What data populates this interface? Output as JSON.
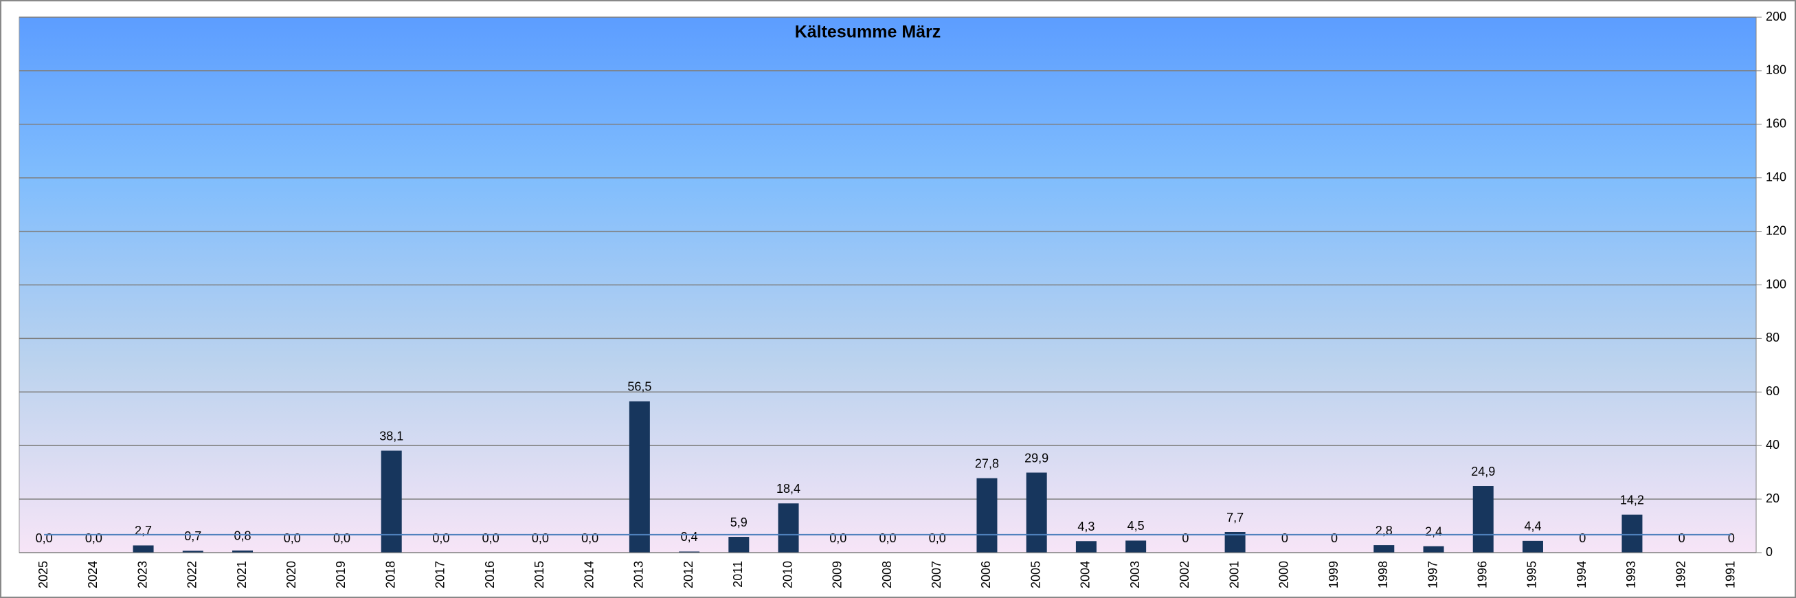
{
  "chart_data": {
    "type": "bar",
    "title": "Kältesumme März",
    "categories": [
      "2025",
      "2024",
      "2023",
      "2022",
      "2021",
      "2020",
      "2019",
      "2018",
      "2017",
      "2016",
      "2015",
      "2014",
      "2013",
      "2012",
      "2011",
      "2010",
      "2009",
      "2008",
      "2007",
      "2006",
      "2005",
      "2004",
      "2003",
      "2002",
      "2001",
      "2000",
      "1999",
      "1998",
      "1997",
      "1996",
      "1995",
      "1994",
      "1993",
      "1992",
      "1991"
    ],
    "series": [
      {
        "color": "#17365d",
        "values": [
          0,
          0,
          2.7,
          0.7,
          0.8,
          0,
          0,
          38.1,
          0,
          0,
          0,
          0,
          56.5,
          0.4,
          5.9,
          18.4,
          0,
          0,
          0,
          27.8,
          29.9,
          4.3,
          4.5,
          0,
          7.7,
          0,
          0,
          2.8,
          2.4,
          24.9,
          4.4,
          0,
          14.2,
          0,
          0
        ],
        "value_labels": [
          "0,0",
          "0,0",
          "2,7",
          "0,7",
          "0,8",
          "0,0",
          "0,0",
          "38,1",
          "0,0",
          "0,0",
          "0,0",
          "0,0",
          "56,5",
          "0,4",
          "5,9",
          "18,4",
          "0,0",
          "0,0",
          "0,0",
          "27,8",
          "29,9",
          "4,3",
          "4,5",
          "0",
          "7,7",
          "0",
          "0",
          "2,8",
          "2,4",
          "24,9",
          "4,4",
          "0",
          "14,2",
          "0",
          "0"
        ]
      },
      {
        "type": "line",
        "color": "#4f81bd",
        "values": [
          6.7,
          6.7,
          6.7,
          6.7,
          6.7,
          6.7,
          6.7,
          6.7,
          6.7,
          6.7,
          6.7,
          6.7,
          6.7,
          6.7,
          6.7,
          6.7,
          6.7,
          6.7,
          6.7,
          6.7,
          6.7,
          6.7,
          6.7,
          6.7,
          6.7,
          6.7,
          6.7,
          6.7,
          6.7,
          6.7,
          6.7,
          6.7,
          6.7,
          6.7,
          6.7
        ]
      }
    ],
    "ylim": [
      0,
      200
    ],
    "yticks": [
      0,
      20,
      40,
      60,
      80,
      100,
      120,
      140,
      160,
      180,
      200
    ],
    "grid": true,
    "y_axis_side": "right"
  }
}
